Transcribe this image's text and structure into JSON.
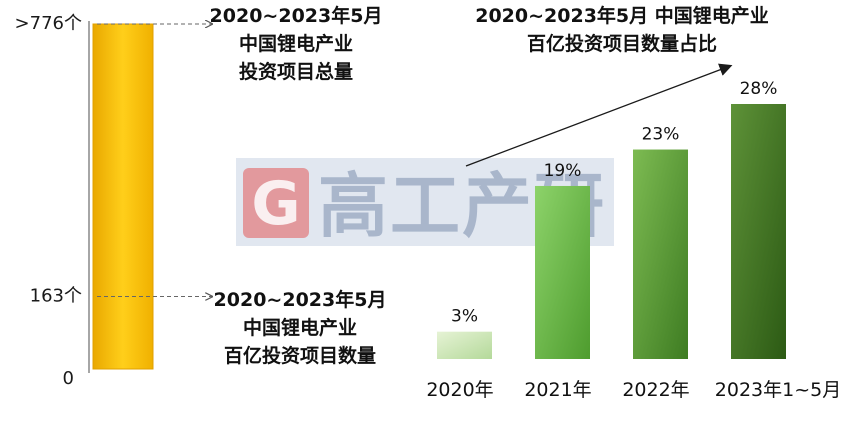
{
  "watermark": {
    "letter": "G",
    "text": "高工产研"
  },
  "chart_data": [
    {
      "type": "bar",
      "ylim": [
        0,
        776
      ],
      "categories": [
        "total"
      ],
      "values": [
        776
      ],
      "ticks": [
        {
          "value": 776,
          "label": ">776个"
        },
        {
          "value": 163,
          "label": "163个"
        },
        {
          "value": 0,
          "label": "0"
        }
      ],
      "annotations": [
        {
          "at_value": 776,
          "lines": [
            "2020~2023年5月",
            "中国锂电产业",
            "投资项目总量"
          ]
        },
        {
          "at_value": 163,
          "lines": [
            "2020~2023年5月",
            "中国锂电产业",
            "百亿投资项目数量"
          ]
        }
      ],
      "bar_color": "#ffc000"
    },
    {
      "type": "bar",
      "title_lines": [
        "2020~2023年5月 中国锂电产业",
        "百亿投资项目数量占比"
      ],
      "categories": [
        "2020年",
        "2021年",
        "2022年",
        "2023年1~5月"
      ],
      "values": [
        3,
        19,
        23,
        28
      ],
      "value_labels": [
        "3%",
        "19%",
        "23%",
        "28%"
      ],
      "ylim": [
        0,
        28
      ],
      "trend_arrow": true,
      "bar_colors": [
        [
          "#e6f3d5",
          "#b4d99a"
        ],
        [
          "#8dd36a",
          "#4e9c2e"
        ],
        [
          "#7dbb52",
          "#3e7c22"
        ],
        [
          "#5e9238",
          "#2c5a14"
        ]
      ]
    }
  ]
}
